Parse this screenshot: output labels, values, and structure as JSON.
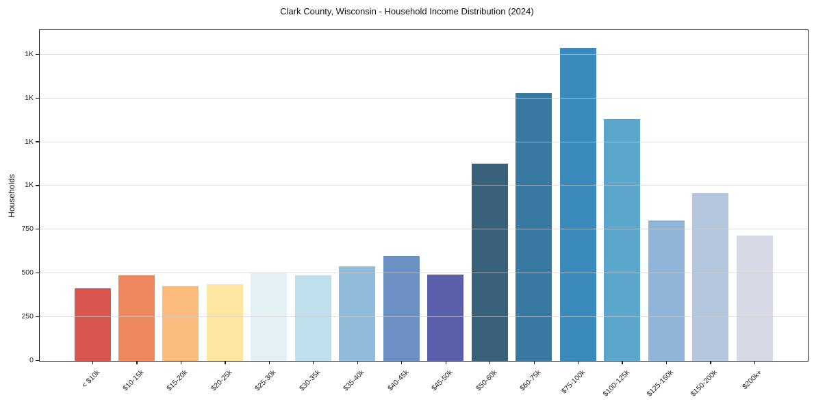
{
  "chart_data": {
    "type": "bar",
    "title": "Clark County, Wisconsin - Household Income Distribution (2024)",
    "xlabel": "",
    "ylabel": "Households",
    "categories": [
      "< $10k",
      "$10-15k",
      "$15-20k",
      "$20-25k",
      "$25-30k",
      "$30-35k",
      "$35-40k",
      "$40-45k",
      "$45-50k",
      "$50-60k",
      "$60-75k",
      "$75-100k",
      "$100-125k",
      "$125-150k",
      "$150-200k",
      "$200k+"
    ],
    "values": [
      415,
      490,
      426,
      438,
      503,
      489,
      542,
      597,
      495,
      1128,
      1532,
      1790,
      1381,
      803,
      959,
      717
    ],
    "bar_colors": [
      "#d8564e",
      "#f0885f",
      "#fbbb7c",
      "#fde5a2",
      "#e3f1f4",
      "#bfdfec",
      "#90bbdb",
      "#6b90c4",
      "#5a60ab",
      "#38617c",
      "#3a7aa2",
      "#3a8abc",
      "#5ba7cc",
      "#8fb4d8",
      "#b5c7de",
      "#d7d9e7"
    ],
    "ylim": [
      0,
      1886
    ],
    "yticks": [
      {
        "value": 0,
        "label": "0"
      },
      {
        "value": 250,
        "label": "250"
      },
      {
        "value": 500,
        "label": "500"
      },
      {
        "value": 750,
        "label": "750"
      },
      {
        "value": 1000,
        "label": "1K"
      },
      {
        "value": 1250,
        "label": "1K"
      },
      {
        "value": 1500,
        "label": "1K"
      },
      {
        "value": 1750,
        "label": "1K"
      }
    ],
    "grid": "horizontal",
    "legend": "none",
    "axis_color": "#1a1a1a",
    "gridline_color": "#e5e5e5",
    "background_color": "#ffffff"
  }
}
